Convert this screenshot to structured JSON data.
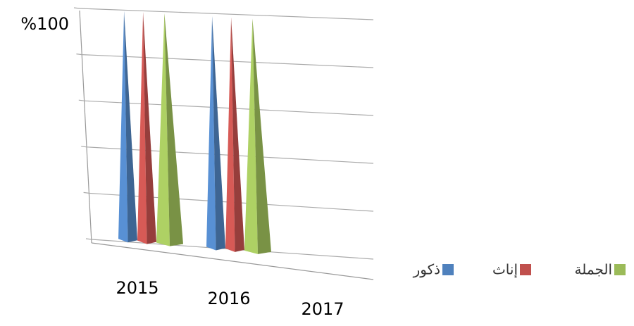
{
  "chart_data": {
    "type": "cone3d",
    "categories": [
      "2015",
      "2016",
      "2017"
    ],
    "series": [
      {
        "name": "ذكور",
        "color": "#4f81bd",
        "values": [
          100,
          100,
          null
        ]
      },
      {
        "name": "إناث",
        "color": "#c0504d",
        "values": [
          100,
          100,
          null
        ]
      },
      {
        "name": "الجملة",
        "color": "#9bbb59",
        "values": [
          100,
          100,
          null
        ]
      }
    ],
    "ylim": [
      0,
      100
    ],
    "yticks": [
      0,
      20,
      40,
      60,
      80,
      {
        "value": 100,
        "label": "%100"
      }
    ],
    "grid": true
  }
}
